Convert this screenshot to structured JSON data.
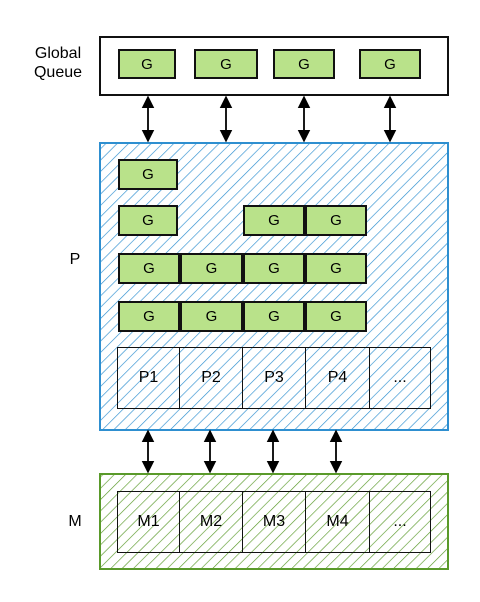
{
  "labels": {
    "global_queue": "Global Queue",
    "p": "P",
    "m": "M"
  },
  "g_label": "G",
  "global_queue_items": [
    "G",
    "G",
    "G",
    "G"
  ],
  "p_queues": [
    [
      "G"
    ],
    [
      "G",
      "",
      "G",
      "G"
    ],
    [
      "G",
      "G",
      "G",
      "G"
    ],
    [
      "G",
      "G",
      "G",
      "G"
    ]
  ],
  "processors": [
    "P1",
    "P2",
    "P3",
    "P4",
    "..."
  ],
  "machines": [
    "M1",
    "M2",
    "M3",
    "M4",
    "..."
  ],
  "colors": {
    "g_fill": "#b9e28a",
    "p_hatch": "#2e8fd0",
    "m_hatch": "#5a9a2a",
    "outline": "#111111"
  }
}
